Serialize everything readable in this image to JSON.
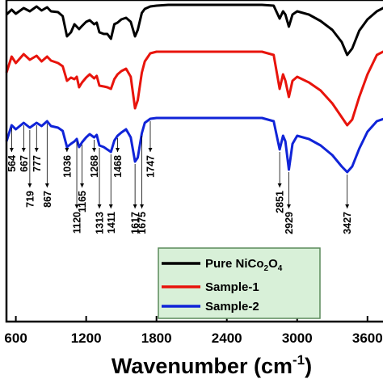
{
  "chart_data": {
    "type": "line",
    "title": "",
    "xlabel_main": "Wavenumber (cm",
    "xlabel_sup": "-1",
    "xlabel_close": ")",
    "ylabel": "",
    "xlim": [
      520,
      3760
    ],
    "x_ticks": [
      600,
      1200,
      1800,
      2400,
      3000,
      3600
    ],
    "x_tick_labels": [
      "600",
      "1200",
      "1800",
      "2400",
      "3000",
      "3600"
    ],
    "grid": false,
    "legend_position": "bottom-right",
    "legend": [
      {
        "prefix": "Pure NiCo",
        "sub1": "2",
        "mid": "O",
        "sub2": "4",
        "color": "#000000"
      },
      {
        "prefix": "Sample-1",
        "sub1": "",
        "mid": "",
        "sub2": "",
        "color": "#e8140c"
      },
      {
        "prefix": "Sample-2",
        "sub1": "",
        "mid": "",
        "sub2": "",
        "color": "#1024d8"
      }
    ],
    "series": [
      {
        "key": "pure",
        "color": "#000000",
        "values": [
          [
            520,
            18
          ],
          [
            564,
            12
          ],
          [
            600,
            17
          ],
          [
            667,
            10
          ],
          [
            719,
            14
          ],
          [
            777,
            8
          ],
          [
            820,
            13
          ],
          [
            867,
            9
          ],
          [
            900,
            14
          ],
          [
            960,
            15
          ],
          [
            1000,
            20
          ],
          [
            1036,
            45
          ],
          [
            1070,
            40
          ],
          [
            1100,
            30
          ],
          [
            1120,
            33
          ],
          [
            1140,
            36
          ],
          [
            1165,
            32
          ],
          [
            1200,
            27
          ],
          [
            1230,
            25
          ],
          [
            1268,
            30
          ],
          [
            1290,
            28
          ],
          [
            1313,
            40
          ],
          [
            1350,
            42
          ],
          [
            1380,
            42
          ],
          [
            1411,
            48
          ],
          [
            1440,
            30
          ],
          [
            1468,
            28
          ],
          [
            1500,
            24
          ],
          [
            1540,
            22
          ],
          [
            1580,
            27
          ],
          [
            1617,
            45
          ],
          [
            1640,
            37
          ],
          [
            1675,
            16
          ],
          [
            1700,
            11
          ],
          [
            1747,
            8
          ],
          [
            1800,
            7
          ],
          [
            1900,
            6
          ],
          [
            2100,
            6
          ],
          [
            2400,
            6
          ],
          [
            2700,
            6
          ],
          [
            2800,
            7
          ],
          [
            2851,
            23
          ],
          [
            2880,
            14
          ],
          [
            2900,
            18
          ],
          [
            2929,
            33
          ],
          [
            2960,
            18
          ],
          [
            3000,
            14
          ],
          [
            3100,
            18
          ],
          [
            3200,
            26
          ],
          [
            3300,
            37
          ],
          [
            3380,
            52
          ],
          [
            3427,
            68
          ],
          [
            3470,
            60
          ],
          [
            3530,
            38
          ],
          [
            3600,
            24
          ],
          [
            3680,
            14
          ],
          [
            3760,
            8
          ]
        ]
      },
      {
        "key": "sample1",
        "color": "#e8140c",
        "values": [
          [
            520,
            90
          ],
          [
            564,
            70
          ],
          [
            600,
            78
          ],
          [
            667,
            67
          ],
          [
            719,
            74
          ],
          [
            777,
            69
          ],
          [
            820,
            76
          ],
          [
            867,
            70
          ],
          [
            900,
            75
          ],
          [
            960,
            78
          ],
          [
            1000,
            82
          ],
          [
            1036,
            100
          ],
          [
            1070,
            96
          ],
          [
            1100,
            98
          ],
          [
            1120,
            95
          ],
          [
            1140,
            108
          ],
          [
            1165,
            102
          ],
          [
            1200,
            96
          ],
          [
            1230,
            92
          ],
          [
            1268,
            97
          ],
          [
            1290,
            94
          ],
          [
            1313,
            106
          ],
          [
            1350,
            107
          ],
          [
            1380,
            108
          ],
          [
            1411,
            110
          ],
          [
            1440,
            98
          ],
          [
            1468,
            92
          ],
          [
            1500,
            88
          ],
          [
            1540,
            85
          ],
          [
            1580,
            95
          ],
          [
            1617,
            134
          ],
          [
            1640,
            124
          ],
          [
            1675,
            90
          ],
          [
            1700,
            76
          ],
          [
            1747,
            66
          ],
          [
            1800,
            64
          ],
          [
            1900,
            64
          ],
          [
            2100,
            64
          ],
          [
            2400,
            64
          ],
          [
            2700,
            64
          ],
          [
            2800,
            68
          ],
          [
            2851,
            110
          ],
          [
            2880,
            92
          ],
          [
            2900,
            100
          ],
          [
            2929,
            120
          ],
          [
            2960,
            100
          ],
          [
            3000,
            95
          ],
          [
            3100,
            102
          ],
          [
            3200,
            112
          ],
          [
            3300,
            128
          ],
          [
            3380,
            145
          ],
          [
            3427,
            155
          ],
          [
            3470,
            148
          ],
          [
            3530,
            120
          ],
          [
            3600,
            92
          ],
          [
            3680,
            68
          ],
          [
            3760,
            62
          ]
        ]
      },
      {
        "key": "sample2",
        "color": "#1024d8",
        "values": [
          [
            520,
            175
          ],
          [
            564,
            155
          ],
          [
            600,
            160
          ],
          [
            667,
            152
          ],
          [
            719,
            158
          ],
          [
            777,
            152
          ],
          [
            820,
            156
          ],
          [
            867,
            150
          ],
          [
            900,
            156
          ],
          [
            960,
            158
          ],
          [
            1000,
            162
          ],
          [
            1036,
            182
          ],
          [
            1070,
            178
          ],
          [
            1100,
            175
          ],
          [
            1120,
            172
          ],
          [
            1140,
            182
          ],
          [
            1165,
            176
          ],
          [
            1200,
            170
          ],
          [
            1230,
            166
          ],
          [
            1268,
            170
          ],
          [
            1290,
            167
          ],
          [
            1313,
            180
          ],
          [
            1350,
            182
          ],
          [
            1380,
            185
          ],
          [
            1411,
            188
          ],
          [
            1440,
            174
          ],
          [
            1468,
            168
          ],
          [
            1500,
            164
          ],
          [
            1540,
            160
          ],
          [
            1580,
            170
          ],
          [
            1617,
            200
          ],
          [
            1640,
            195
          ],
          [
            1675,
            165
          ],
          [
            1700,
            152
          ],
          [
            1747,
            147
          ],
          [
            1800,
            146
          ],
          [
            1900,
            146
          ],
          [
            2100,
            146
          ],
          [
            2400,
            146
          ],
          [
            2700,
            146
          ],
          [
            2800,
            150
          ],
          [
            2851,
            185
          ],
          [
            2880,
            168
          ],
          [
            2900,
            175
          ],
          [
            2929,
            210
          ],
          [
            2960,
            178
          ],
          [
            3000,
            168
          ],
          [
            3100,
            172
          ],
          [
            3200,
            180
          ],
          [
            3300,
            192
          ],
          [
            3380,
            206
          ],
          [
            3427,
            213
          ],
          [
            3470,
            206
          ],
          [
            3530,
            184
          ],
          [
            3600,
            163
          ],
          [
            3680,
            150
          ],
          [
            3760,
            146
          ]
        ]
      }
    ],
    "annotations_down": [
      {
        "label": "564",
        "x": 564
      },
      {
        "label": "667",
        "x": 667
      },
      {
        "label": "777",
        "x": 777
      },
      {
        "label": "1036",
        "x": 1036
      },
      {
        "label": "1268",
        "x": 1268
      },
      {
        "label": "1468",
        "x": 1468
      },
      {
        "label": "1747",
        "x": 1747
      }
    ],
    "annotations_deep": [
      {
        "label": "719",
        "x": 719
      },
      {
        "label": "867",
        "x": 867
      },
      {
        "label": "1120",
        "x": 1120
      },
      {
        "label": "1165",
        "x": 1165
      },
      {
        "label": "1313",
        "x": 1313
      },
      {
        "label": "1411",
        "x": 1411
      },
      {
        "label": "1617",
        "x": 1617
      },
      {
        "label": "1675",
        "x": 1675
      },
      {
        "label": "2851",
        "x": 2851
      },
      {
        "label": "2929",
        "x": 2929
      },
      {
        "label": "3427",
        "x": 3427
      }
    ]
  }
}
